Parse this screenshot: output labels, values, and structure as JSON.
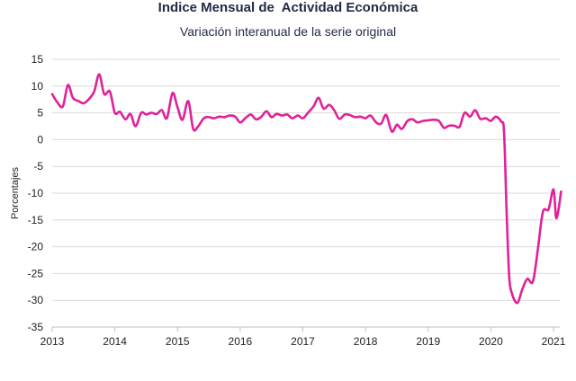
{
  "chart_data": {
    "type": "line",
    "title": "Indice Mensual de  Actividad Económica",
    "subtitle": "Variación interanual de la serie original",
    "xlabel": "",
    "ylabel": "Porcentajes",
    "ylim": [
      -35,
      15
    ],
    "yticks": [
      15,
      10,
      5,
      0,
      -5,
      -10,
      -15,
      -20,
      -25,
      -30,
      -35
    ],
    "xlim": [
      2013,
      2021.1
    ],
    "xticks": [
      "2013",
      "2014",
      "2015",
      "2016",
      "2017",
      "2018",
      "2019",
      "2020",
      "2021"
    ],
    "grid": "horizontal",
    "line_color": "#e0219a",
    "series": [
      {
        "points": [
          [
            2013.0,
            8.5
          ],
          [
            2013.08,
            7.0
          ],
          [
            2013.17,
            6.2
          ],
          [
            2013.25,
            10.2
          ],
          [
            2013.33,
            7.8
          ],
          [
            2013.42,
            7.2
          ],
          [
            2013.5,
            6.8
          ],
          [
            2013.58,
            7.5
          ],
          [
            2013.67,
            9.0
          ],
          [
            2013.75,
            12.2
          ],
          [
            2013.83,
            8.5
          ],
          [
            2013.92,
            9.0
          ],
          [
            2014.0,
            5.0
          ],
          [
            2014.08,
            5.2
          ],
          [
            2014.17,
            3.8
          ],
          [
            2014.25,
            4.8
          ],
          [
            2014.33,
            2.5
          ],
          [
            2014.42,
            5.0
          ],
          [
            2014.5,
            4.7
          ],
          [
            2014.58,
            5.0
          ],
          [
            2014.67,
            4.8
          ],
          [
            2014.75,
            5.5
          ],
          [
            2014.83,
            4.0
          ],
          [
            2014.92,
            8.7
          ],
          [
            2015.0,
            6.0
          ],
          [
            2015.08,
            3.7
          ],
          [
            2015.17,
            7.2
          ],
          [
            2015.25,
            2.0
          ],
          [
            2015.33,
            2.5
          ],
          [
            2015.42,
            4.0
          ],
          [
            2015.5,
            4.2
          ],
          [
            2015.58,
            4.0
          ],
          [
            2015.67,
            4.3
          ],
          [
            2015.75,
            4.2
          ],
          [
            2015.83,
            4.5
          ],
          [
            2015.92,
            4.3
          ],
          [
            2016.0,
            3.2
          ],
          [
            2016.08,
            4.0
          ],
          [
            2016.17,
            4.7
          ],
          [
            2016.25,
            3.8
          ],
          [
            2016.33,
            4.2
          ],
          [
            2016.42,
            5.3
          ],
          [
            2016.5,
            4.2
          ],
          [
            2016.58,
            4.8
          ],
          [
            2016.67,
            4.5
          ],
          [
            2016.75,
            4.7
          ],
          [
            2016.83,
            4.0
          ],
          [
            2016.92,
            4.5
          ],
          [
            2017.0,
            4.0
          ],
          [
            2017.08,
            5.0
          ],
          [
            2017.17,
            6.2
          ],
          [
            2017.25,
            7.8
          ],
          [
            2017.33,
            5.8
          ],
          [
            2017.42,
            6.5
          ],
          [
            2017.5,
            5.5
          ],
          [
            2017.58,
            3.9
          ],
          [
            2017.67,
            4.7
          ],
          [
            2017.75,
            4.6
          ],
          [
            2017.83,
            4.2
          ],
          [
            2017.92,
            4.3
          ],
          [
            2018.0,
            4.0
          ],
          [
            2018.08,
            4.5
          ],
          [
            2018.17,
            3.2
          ],
          [
            2018.25,
            3.0
          ],
          [
            2018.33,
            4.6
          ],
          [
            2018.42,
            1.5
          ],
          [
            2018.5,
            2.8
          ],
          [
            2018.58,
            2.0
          ],
          [
            2018.67,
            3.5
          ],
          [
            2018.75,
            3.8
          ],
          [
            2018.83,
            3.2
          ],
          [
            2018.92,
            3.5
          ],
          [
            2019.0,
            3.6
          ],
          [
            2019.08,
            3.7
          ],
          [
            2019.17,
            3.5
          ],
          [
            2019.25,
            2.2
          ],
          [
            2019.33,
            2.6
          ],
          [
            2019.42,
            2.6
          ],
          [
            2019.5,
            2.4
          ],
          [
            2019.58,
            5.0
          ],
          [
            2019.67,
            4.3
          ],
          [
            2019.75,
            5.5
          ],
          [
            2019.83,
            3.9
          ],
          [
            2019.92,
            4.0
          ],
          [
            2020.0,
            3.5
          ],
          [
            2020.08,
            4.3
          ],
          [
            2020.17,
            3.3
          ],
          [
            2020.21,
            1.5
          ],
          [
            2020.25,
            -13.0
          ],
          [
            2020.29,
            -25.0
          ],
          [
            2020.33,
            -28.5
          ],
          [
            2020.42,
            -30.5
          ],
          [
            2020.5,
            -28.0
          ],
          [
            2020.58,
            -26.0
          ],
          [
            2020.67,
            -26.5
          ],
          [
            2020.75,
            -20.5
          ],
          [
            2020.83,
            -13.5
          ],
          [
            2020.92,
            -13.0
          ],
          [
            2021.0,
            -9.3
          ],
          [
            2021.04,
            -14.5
          ],
          [
            2021.08,
            -13.0
          ],
          [
            2021.12,
            -9.7
          ]
        ]
      }
    ]
  }
}
